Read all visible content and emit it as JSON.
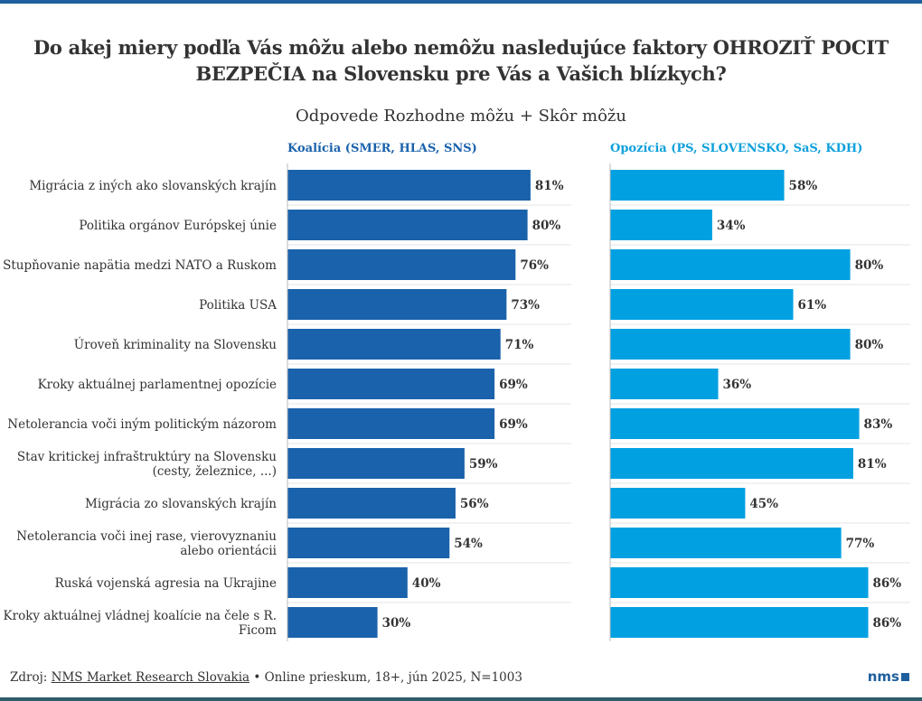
{
  "title_line1": "Do akej miery podľa Vás môžu alebo nemôžu nasledujúce faktory OHROZIŤ POCIT",
  "title_line2": "BEZPEČIA na Slovensku pre Vás a Vašich blízkych?",
  "subtitle": "Odpovede Rozhodne môžu + Skôr môžu",
  "footer": {
    "prefix": "Zdroj: ",
    "source_link": "NMS Market Research Slovakia",
    "rest": " • Online prieskum, 18+, jún 2025, N=1003"
  },
  "logo": "nms",
  "colors": {
    "coalition": "#1a62ab",
    "opposition": "#00a0e1",
    "title_coalition": "#1a62ab",
    "title_opposition": "#0ea0dc"
  },
  "chart_data": {
    "type": "bar",
    "orientation": "horizontal",
    "xlim": [
      0,
      100
    ],
    "unit": "%",
    "categories": [
      [
        "Migrácia z iných ako slovanských krajín"
      ],
      [
        "Politika orgánov Európskej únie"
      ],
      [
        "Stupňovanie napätia medzi NATO a Ruskom"
      ],
      [
        "Politika USA"
      ],
      [
        "Úroveň kriminality na Slovensku"
      ],
      [
        "Kroky aktuálnej parlamentnej opozície"
      ],
      [
        "Netolerancia voči iným politickým názorom"
      ],
      [
        "Stav kritickej infraštruktúry na Slovensku",
        "(cesty, železnice, ...)"
      ],
      [
        "Migrácia zo slovanských krajín"
      ],
      [
        "Netolerancia voči inej rase, vierovyznaniu",
        "alebo orientácii"
      ],
      [
        "Ruská vojenská agresia na Ukrajine"
      ],
      [
        "Kroky aktuálnej vládnej koalície na čele s R.",
        "Ficom"
      ]
    ],
    "series": [
      {
        "name": "Koalícia (SMER, HLAS, SNS)",
        "values": [
          81,
          80,
          76,
          73,
          71,
          69,
          69,
          59,
          56,
          54,
          40,
          30
        ]
      },
      {
        "name": "Opozícia (PS, SLOVENSKO, SaS, KDH)",
        "values": [
          58,
          34,
          80,
          61,
          80,
          36,
          83,
          81,
          45,
          77,
          86,
          86
        ]
      }
    ]
  }
}
